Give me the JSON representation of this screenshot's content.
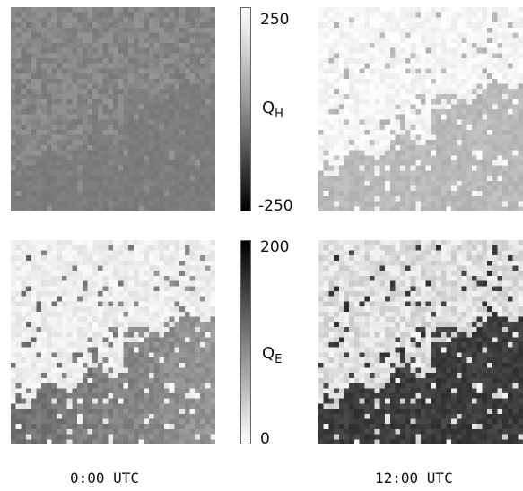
{
  "panels": [
    {
      "id": "qh-00",
      "variable": "Q_H",
      "time": "0:00 UTC"
    },
    {
      "id": "qh-12",
      "variable": "Q_H",
      "time": "12:00 UTC"
    },
    {
      "id": "qe-00",
      "variable": "Q_E",
      "time": "0:00 UTC"
    },
    {
      "id": "qe-12",
      "variable": "Q_E",
      "time": "12:00 UTC"
    }
  ],
  "colorbars": {
    "qh": {
      "max_label": "250",
      "min_label": "-250",
      "label_main": "Q",
      "label_sub": "H",
      "range": [
        -250,
        250
      ]
    },
    "qe": {
      "max_label": "200",
      "min_label": "0",
      "label_main": "Q",
      "label_sub": "E",
      "range": [
        0,
        200
      ]
    }
  },
  "time_labels": {
    "left": "0:00 UTC",
    "right": "12:00 UTC"
  },
  "colors": {
    "background": "#ffffff",
    "colorbar_border": "#666666"
  }
}
